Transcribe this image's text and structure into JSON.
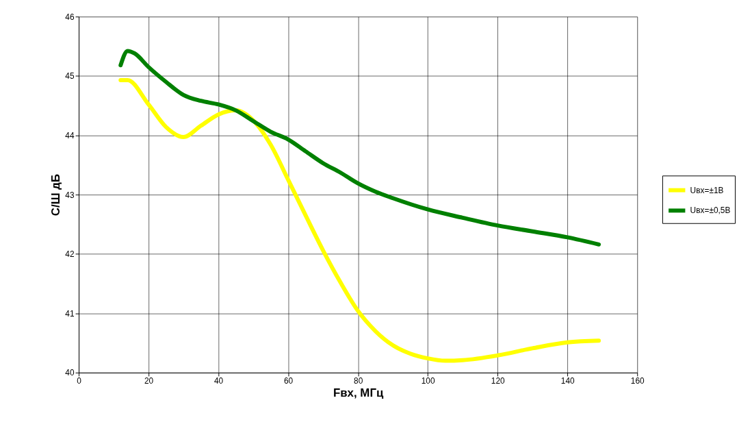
{
  "chart_data": {
    "type": "line",
    "xlabel": "Fвх, МГц",
    "ylabel": "С/Ш дБ",
    "xlim": [
      0,
      160
    ],
    "xticks": [
      0,
      20,
      40,
      60,
      80,
      100,
      120,
      140,
      160
    ],
    "ylim": [
      40,
      46
    ],
    "yticks": [
      40,
      41,
      42,
      43,
      44,
      45,
      46
    ],
    "grid": true,
    "legend": "right",
    "marker": "none",
    "line_style": "solid",
    "series": [
      {
        "name": "Uвх=±1В",
        "color": "#ffff00",
        "x": [
          12,
          14,
          20,
          25,
          30,
          35,
          40,
          45,
          50,
          55,
          60,
          65,
          70,
          75,
          80,
          85,
          90,
          95,
          100,
          105,
          110,
          120,
          130,
          140,
          149
        ],
        "values": [
          44.93,
          44.93,
          44.52,
          44.14,
          43.97,
          44.16,
          44.35,
          44.42,
          44.25,
          43.84,
          43.25,
          42.65,
          42.06,
          41.52,
          41.04,
          40.7,
          40.46,
          40.32,
          40.24,
          40.2,
          40.21,
          40.29,
          40.41,
          40.51,
          40.54
        ]
      },
      {
        "name": "Uвх=±0,5В",
        "color": "#008000",
        "x": [
          12,
          14,
          16,
          20,
          25,
          30,
          35,
          40,
          45,
          50,
          55,
          60,
          65,
          70,
          75,
          80,
          85,
          90,
          100,
          110,
          120,
          130,
          140,
          149
        ],
        "values": [
          45.18,
          45.42,
          45.38,
          45.15,
          44.9,
          44.68,
          44.58,
          44.52,
          44.42,
          44.24,
          44.06,
          43.93,
          43.73,
          43.53,
          43.37,
          43.19,
          43.05,
          42.94,
          42.75,
          42.61,
          42.48,
          42.38,
          42.28,
          42.16
        ]
      }
    ]
  }
}
